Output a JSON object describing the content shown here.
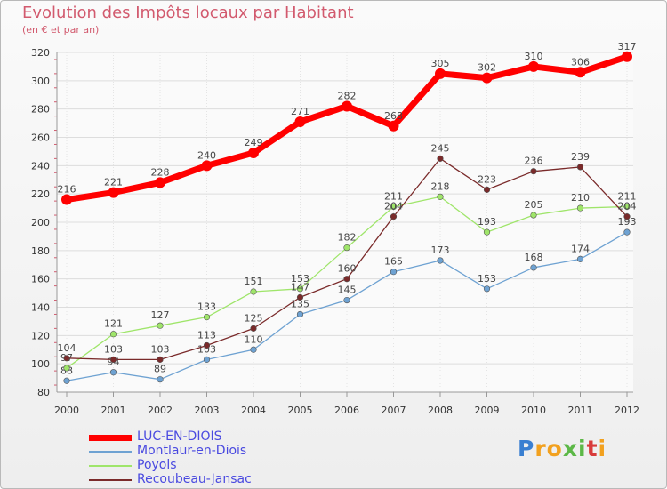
{
  "chart_data": {
    "type": "line",
    "title": "Evolution des Impôts locaux par Habitant",
    "subtitle": "(en € et par an)",
    "xlabel": "",
    "ylabel": "",
    "ylim": [
      80,
      320
    ],
    "yticks": [
      80,
      100,
      120,
      140,
      160,
      180,
      200,
      220,
      240,
      260,
      280,
      300,
      320
    ],
    "grid": true,
    "legend_position": "bottom-left",
    "categories": [
      "2000",
      "2001",
      "2002",
      "2003",
      "2004",
      "2005",
      "2006",
      "2007",
      "2008",
      "2009",
      "2010",
      "2011",
      "2012"
    ],
    "series": [
      {
        "name": "LUC-EN-DIOIS",
        "color": "#ff0000",
        "values": [
          216,
          221,
          228,
          240,
          249,
          271,
          282,
          268,
          305,
          302,
          310,
          306,
          317
        ]
      },
      {
        "name": "Montlaur-en-Diois",
        "color": "#6ea2d2",
        "values": [
          88,
          94,
          89,
          103,
          110,
          135,
          145,
          165,
          173,
          153,
          168,
          174,
          193
        ]
      },
      {
        "name": "Poyols",
        "color": "#9fe56a",
        "values": [
          97,
          121,
          127,
          133,
          151,
          153,
          182,
          211,
          218,
          193,
          205,
          210,
          211
        ]
      },
      {
        "name": "Recoubeau-Jansac",
        "color": "#7a2a2a",
        "values": [
          104,
          103,
          103,
          113,
          125,
          147,
          160,
          204,
          245,
          223,
          236,
          239,
          204
        ]
      }
    ]
  },
  "brand": {
    "name": "Proxiti",
    "letters": [
      "P",
      "r",
      "o",
      "x",
      "i",
      "t",
      "i"
    ],
    "colors": [
      "#3a7fd1",
      "#f2a11f",
      "#f2a11f",
      "#5cb847",
      "#5cb847",
      "#d83b3b",
      "#f2a11f"
    ]
  }
}
